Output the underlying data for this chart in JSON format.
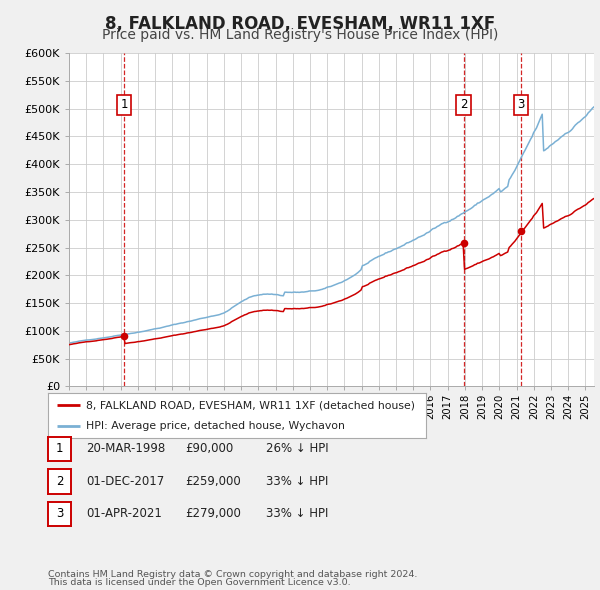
{
  "title": "8, FALKLAND ROAD, EVESHAM, WR11 1XF",
  "subtitle": "Price paid vs. HM Land Registry's House Price Index (HPI)",
  "title_fontsize": 12,
  "subtitle_fontsize": 10,
  "background_color": "#f0f0f0",
  "plot_bg_color": "#ffffff",
  "hpi_color": "#7ab0d4",
  "price_color": "#cc0000",
  "grid_color": "#cccccc",
  "ylim": [
    0,
    600000
  ],
  "yticks": [
    0,
    50000,
    100000,
    150000,
    200000,
    250000,
    300000,
    350000,
    400000,
    450000,
    500000,
    550000,
    600000
  ],
  "transactions": [
    {
      "label": "1",
      "date_str": "20-MAR-1998",
      "date_x": 1998.21,
      "price": 90000,
      "hpi_pct": "26%"
    },
    {
      "label": "2",
      "date_str": "01-DEC-2017",
      "date_x": 2017.92,
      "price": 259000,
      "hpi_pct": "33%"
    },
    {
      "label": "3",
      "date_str": "01-APR-2021",
      "date_x": 2021.25,
      "price": 279000,
      "hpi_pct": "33%"
    }
  ],
  "legend_property_label": "8, FALKLAND ROAD, EVESHAM, WR11 1XF (detached house)",
  "legend_hpi_label": "HPI: Average price, detached house, Wychavon",
  "footer_line1": "Contains HM Land Registry data © Crown copyright and database right 2024.",
  "footer_line2": "This data is licensed under the Open Government Licence v3.0.",
  "xmin": 1995.0,
  "xmax": 2025.5
}
